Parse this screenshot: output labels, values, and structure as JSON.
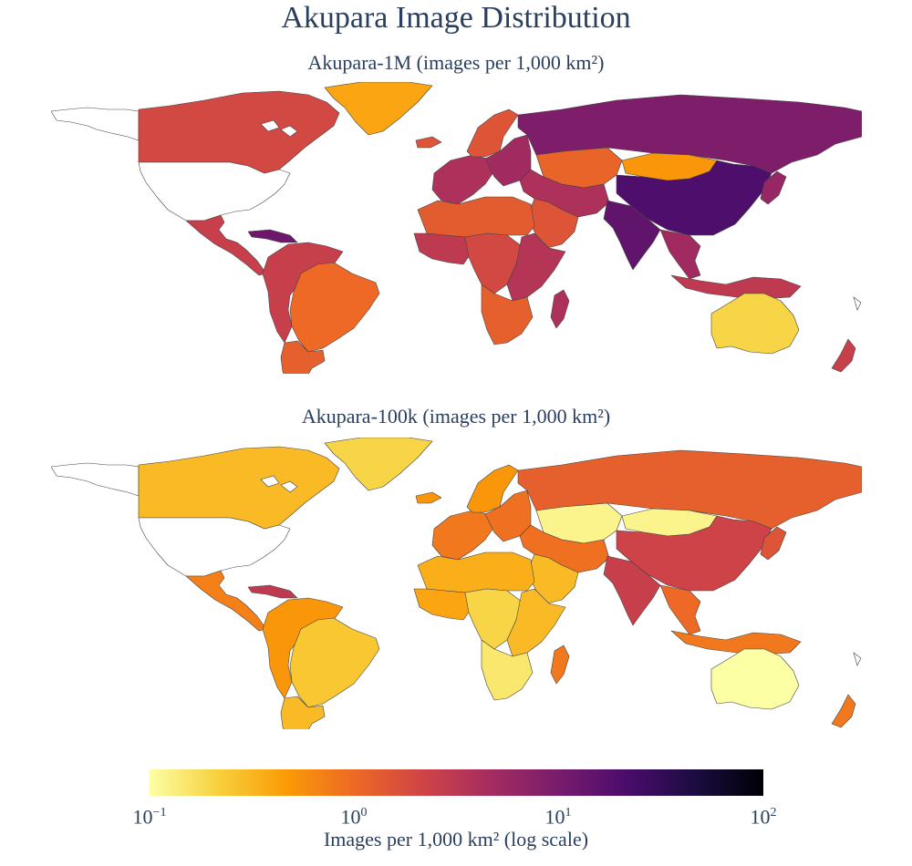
{
  "title": "Akupara Image Distribution",
  "maps": [
    {
      "subtitle": "Akupara-1M (images per 1,000 km²)",
      "regions": [
        {
          "name": "alaska",
          "value": null
        },
        {
          "name": "canada",
          "value": 2.0
        },
        {
          "name": "greenland",
          "value": 0.4
        },
        {
          "name": "usa",
          "value": null
        },
        {
          "name": "mexico-central-america",
          "value": 2.5
        },
        {
          "name": "caribbean",
          "value": 12
        },
        {
          "name": "south-america-north",
          "value": 2.5
        },
        {
          "name": "brazil",
          "value": 1.0
        },
        {
          "name": "south-america-south",
          "value": 1.2
        },
        {
          "name": "iceland",
          "value": 1.5
        },
        {
          "name": "western-europe",
          "value": 4
        },
        {
          "name": "scandinavia",
          "value": 1.5
        },
        {
          "name": "eastern-europe",
          "value": 5
        },
        {
          "name": "russia",
          "value": 9
        },
        {
          "name": "central-asia",
          "value": 1.1
        },
        {
          "name": "mongolia",
          "value": 0.5
        },
        {
          "name": "china",
          "value": 20
        },
        {
          "name": "middle-east",
          "value": 4
        },
        {
          "name": "arabia",
          "value": 1.5
        },
        {
          "name": "india",
          "value": 15
        },
        {
          "name": "southeast-asia",
          "value": 5
        },
        {
          "name": "japan",
          "value": 6
        },
        {
          "name": "indonesia",
          "value": 3
        },
        {
          "name": "north-africa",
          "value": 1.3
        },
        {
          "name": "west-africa",
          "value": 3
        },
        {
          "name": "central-africa",
          "value": 2
        },
        {
          "name": "east-africa",
          "value": 3.5
        },
        {
          "name": "southern-africa",
          "value": 1.2
        },
        {
          "name": "madagascar",
          "value": 4
        },
        {
          "name": "australia",
          "value": 0.2
        },
        {
          "name": "new-zealand",
          "value": 2.5
        }
      ]
    },
    {
      "subtitle": "Akupara-100k (images per 1,000 km²)",
      "regions": [
        {
          "name": "alaska",
          "value": null
        },
        {
          "name": "canada",
          "value": 0.3
        },
        {
          "name": "greenland",
          "value": 0.2
        },
        {
          "name": "usa",
          "value": null
        },
        {
          "name": "mexico-central-america",
          "value": 0.7
        },
        {
          "name": "caribbean",
          "value": 3
        },
        {
          "name": "south-america-north",
          "value": 0.5
        },
        {
          "name": "brazil",
          "value": 0.25
        },
        {
          "name": "south-america-south",
          "value": 0.3
        },
        {
          "name": "iceland",
          "value": 0.5
        },
        {
          "name": "western-europe",
          "value": 0.8
        },
        {
          "name": "scandinavia",
          "value": 0.5
        },
        {
          "name": "eastern-europe",
          "value": 0.9
        },
        {
          "name": "russia",
          "value": 1.2
        },
        {
          "name": "central-asia",
          "value": 0.12
        },
        {
          "name": "mongolia",
          "value": 0.12
        },
        {
          "name": "china",
          "value": 2.2
        },
        {
          "name": "middle-east",
          "value": 0.9
        },
        {
          "name": "arabia",
          "value": 0.3
        },
        {
          "name": "india",
          "value": 2.5
        },
        {
          "name": "southeast-asia",
          "value": 1.0
        },
        {
          "name": "japan",
          "value": 1.5
        },
        {
          "name": "indonesia",
          "value": 0.8
        },
        {
          "name": "north-africa",
          "value": 0.35
        },
        {
          "name": "west-africa",
          "value": 0.4
        },
        {
          "name": "central-africa",
          "value": 0.2
        },
        {
          "name": "east-africa",
          "value": 0.3
        },
        {
          "name": "southern-africa",
          "value": 0.15
        },
        {
          "name": "madagascar",
          "value": 0.8
        },
        {
          "name": "australia",
          "value": 0.1
        },
        {
          "name": "new-zealand",
          "value": 0.8
        }
      ]
    }
  ],
  "colorbar": {
    "title": "Images per 1,000 km² (log scale)",
    "colorscale": "inferno-reversed",
    "stops": [
      "#fcffa4",
      "#f7d13d",
      "#fb9b06",
      "#ed6925",
      "#cf4446",
      "#a52c60",
      "#781c6d",
      "#4a0c6b",
      "#1b0c41",
      "#000004"
    ],
    "range": [
      0.1,
      100
    ],
    "scale": "log",
    "ticks": [
      {
        "base": "10",
        "exp": "−1"
      },
      {
        "base": "10",
        "exp": "0"
      },
      {
        "base": "10",
        "exp": "1"
      },
      {
        "base": "10",
        "exp": "2"
      }
    ]
  }
}
